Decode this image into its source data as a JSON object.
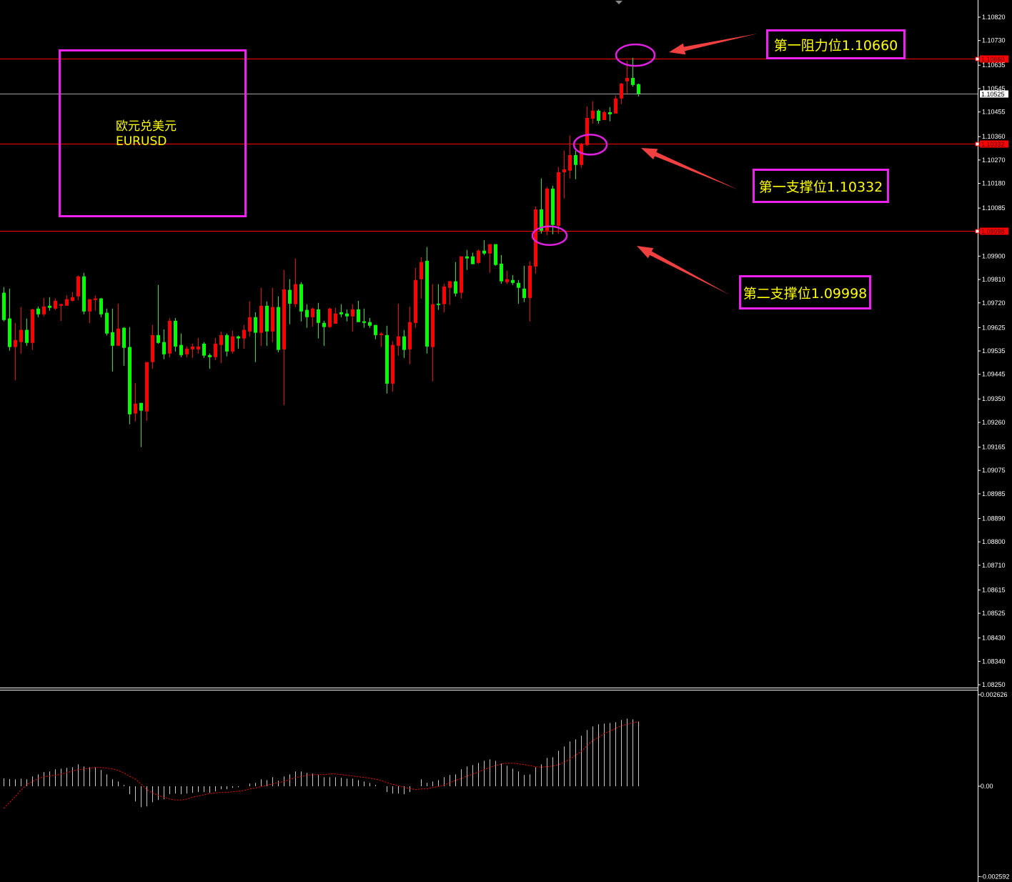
{
  "chart_data": {
    "type": "candlestick",
    "up_color": "#ff0000",
    "down_color": "#00ff00",
    "background": "#000000",
    "price_range": [
      1.0825,
      1.1082
    ],
    "y_ticks": [
      "1.10820",
      "1.10730",
      "1.10635",
      "1.10545",
      "1.10455",
      "1.10360",
      "1.10270",
      "1.10180",
      "1.10085",
      "1.09900",
      "1.09810",
      "1.09720",
      "1.09625",
      "1.09535",
      "1.09445",
      "1.09350",
      "1.09260",
      "1.09165",
      "1.09075",
      "1.08985",
      "1.08890",
      "1.08800",
      "1.08710",
      "1.08615",
      "1.08525",
      "1.08430",
      "1.08340",
      "1.08250"
    ],
    "ohlc": [
      [
        1.09759,
        1.09781,
        1.09649,
        1.09654
      ],
      [
        1.0966,
        1.09775,
        1.09536,
        1.0955
      ],
      [
        1.0955,
        1.09643,
        1.09423,
        1.09577
      ],
      [
        1.09569,
        1.09704,
        1.09525,
        1.09616
      ],
      [
        1.09616,
        1.0966,
        1.09555,
        1.09566
      ],
      [
        1.09566,
        1.09698,
        1.09539,
        1.09695
      ],
      [
        1.09698,
        1.09706,
        1.09665,
        1.09676
      ],
      [
        1.09676,
        1.09739,
        1.09668,
        1.09706
      ],
      [
        1.09709,
        1.09742,
        1.0969,
        1.09701
      ],
      [
        1.09698,
        1.09737,
        1.09693,
        1.09728
      ],
      [
        1.09709,
        1.09717,
        1.09651,
        1.09715
      ],
      [
        1.09709,
        1.0975,
        1.09709,
        1.09734
      ],
      [
        1.09728,
        1.09761,
        1.09726,
        1.09742
      ],
      [
        1.09745,
        1.09825,
        1.09731,
        1.09822
      ],
      [
        1.09822,
        1.09836,
        1.09676,
        1.09687
      ],
      [
        1.09687,
        1.09734,
        1.09643,
        1.09734
      ],
      [
        1.09731,
        1.09748,
        1.0969,
        1.09737
      ],
      [
        1.09737,
        1.09739,
        1.09665,
        1.09676
      ],
      [
        1.09682,
        1.09698,
        1.09594,
        1.09602
      ],
      [
        1.09607,
        1.09698,
        1.09456,
        1.09555
      ],
      [
        1.09555,
        1.09717,
        1.09555,
        1.09621
      ],
      [
        1.09624,
        1.09627,
        1.09478,
        1.09547
      ],
      [
        1.0955,
        1.09627,
        1.09253,
        1.09291
      ],
      [
        1.09294,
        1.09412,
        1.09264,
        1.09332
      ],
      [
        1.09335,
        1.09335,
        1.09165,
        1.09305
      ],
      [
        1.09302,
        1.09492,
        1.09266,
        1.09492
      ],
      [
        1.09492,
        1.09635,
        1.09467,
        1.09596
      ],
      [
        1.09596,
        1.09789,
        1.09563,
        1.09566
      ],
      [
        1.09569,
        1.09618,
        1.09503,
        1.09522
      ],
      [
        1.09525,
        1.09662,
        1.09511,
        1.09651
      ],
      [
        1.09651,
        1.09662,
        1.09533,
        1.09552
      ],
      [
        1.09558,
        1.09602,
        1.09511,
        1.09519
      ],
      [
        1.09522,
        1.09552,
        1.09511,
        1.09544
      ],
      [
        1.09541,
        1.09563,
        1.09508,
        1.09552
      ],
      [
        1.09541,
        1.09585,
        1.09525,
        1.09552
      ],
      [
        1.09563,
        1.09569,
        1.09508,
        1.09517
      ],
      [
        1.09519,
        1.09525,
        1.09467,
        1.09511
      ],
      [
        1.09511,
        1.09585,
        1.095,
        1.09563
      ],
      [
        1.09558,
        1.0961,
        1.09489,
        1.09596
      ],
      [
        1.09596,
        1.09602,
        1.09514,
        1.09533
      ],
      [
        1.09533,
        1.09613,
        1.09525,
        1.09591
      ],
      [
        1.09591,
        1.09594,
        1.09544,
        1.09583
      ],
      [
        1.09583,
        1.09635,
        1.09544,
        1.09616
      ],
      [
        1.0961,
        1.09726,
        1.09591,
        1.09665
      ],
      [
        1.09665,
        1.09684,
        1.09492,
        1.09605
      ],
      [
        1.09605,
        1.09778,
        1.09555,
        1.09709
      ],
      [
        1.09709,
        1.09726,
        1.09555,
        1.0961
      ],
      [
        1.0961,
        1.09778,
        1.09569,
        1.09704
      ],
      [
        1.09704,
        1.09745,
        1.0953,
        1.09539
      ],
      [
        1.09541,
        1.09847,
        1.09327,
        1.09772
      ],
      [
        1.0977,
        1.09811,
        1.09638,
        1.09717
      ],
      [
        1.09715,
        1.09891,
        1.09704,
        1.09792
      ],
      [
        1.09792,
        1.098,
        1.09649,
        1.09687
      ],
      [
        1.09693,
        1.09715,
        1.09624,
        1.09665
      ],
      [
        1.09665,
        1.09701,
        1.09629,
        1.09698
      ],
      [
        1.09695,
        1.0972,
        1.09583,
        1.09643
      ],
      [
        1.09643,
        1.09651,
        1.09555,
        1.09627
      ],
      [
        1.09627,
        1.09701,
        1.09624,
        1.09698
      ],
      [
        1.0964,
        1.09701,
        1.0964,
        1.09679
      ],
      [
        1.09684,
        1.09715,
        1.09665,
        1.09676
      ],
      [
        1.09679,
        1.09695,
        1.09649,
        1.09668
      ],
      [
        1.09668,
        1.09715,
        1.0961,
        1.09695
      ],
      [
        1.09695,
        1.09728,
        1.09646,
        1.09646
      ],
      [
        1.09649,
        1.09698,
        1.09624,
        1.09643
      ],
      [
        1.09646,
        1.09662,
        1.09624,
        1.09632
      ],
      [
        1.09635,
        1.09635,
        1.0958,
        1.09596
      ],
      [
        1.09596,
        1.09607,
        1.0955,
        1.09602
      ],
      [
        1.09596,
        1.09632,
        1.09371,
        1.09409
      ],
      [
        1.09409,
        1.09572,
        1.09379,
        1.09558
      ],
      [
        1.09555,
        1.09717,
        1.09517,
        1.09591
      ],
      [
        1.09591,
        1.09616,
        1.09508,
        1.09539
      ],
      [
        1.09541,
        1.09706,
        1.09484,
        1.09646
      ],
      [
        1.09643,
        1.09855,
        1.09624,
        1.09808
      ],
      [
        1.09811,
        1.09896,
        1.09737,
        1.09877
      ],
      [
        1.09882,
        1.09935,
        1.09525,
        1.09552
      ],
      [
        1.0955,
        1.09792,
        1.09418,
        1.09715
      ],
      [
        1.09717,
        1.09792,
        1.09693,
        1.09712
      ],
      [
        1.09715,
        1.09794,
        1.09684,
        1.09783
      ],
      [
        1.09778,
        1.09805,
        1.09712,
        1.09803
      ],
      [
        1.09803,
        1.09877,
        1.09745,
        1.09756
      ],
      [
        1.09759,
        1.09899,
        1.09737,
        1.09899
      ],
      [
        1.09899,
        1.09924,
        1.09847,
        1.09891
      ],
      [
        1.09899,
        1.09913,
        1.09869,
        1.09869
      ],
      [
        1.09874,
        1.09926,
        1.09871,
        1.09921
      ],
      [
        1.09921,
        1.09962,
        1.09904,
        1.0991
      ],
      [
        1.0991,
        1.09946,
        1.09836,
        1.09946
      ],
      [
        1.09946,
        1.09946,
        1.09863,
        1.09866
      ],
      [
        1.09871,
        1.09904,
        1.09794,
        1.09803
      ],
      [
        1.098,
        1.09844,
        1.09792,
        1.09811
      ],
      [
        1.09808,
        1.09827,
        1.09789,
        1.09797
      ],
      [
        1.09797,
        1.09808,
        1.09717,
        1.09778
      ],
      [
        1.09775,
        1.09863,
        1.09723,
        1.09739
      ],
      [
        1.09739,
        1.0988,
        1.09649,
        1.09863
      ],
      [
        1.0986,
        1.10091,
        1.09833,
        1.1008
      ],
      [
        1.1008,
        1.10199,
        1.09987,
        1.09998
      ],
      [
        1.09998,
        1.10166,
        1.09981,
        1.1016
      ],
      [
        1.1016,
        1.10171,
        1.09984,
        1.1002
      ],
      [
        1.10017,
        1.10243,
        1.09987,
        1.10223
      ],
      [
        1.10223,
        1.10306,
        1.10122,
        1.10234
      ],
      [
        1.10229,
        1.10364,
        1.10199,
        1.10289
      ],
      [
        1.10289,
        1.10306,
        1.10196,
        1.10251
      ],
      [
        1.10251,
        1.10336,
        1.1024,
        1.10333
      ],
      [
        1.10328,
        1.10476,
        1.10325,
        1.10432
      ],
      [
        1.10429,
        1.10496,
        1.1041,
        1.1046
      ],
      [
        1.1046,
        1.10465,
        1.1041,
        1.10421
      ],
      [
        1.10424,
        1.1046,
        1.10424,
        1.10454
      ],
      [
        1.10454,
        1.10474,
        1.10419,
        1.10446
      ],
      [
        1.10449,
        1.10518,
        1.10449,
        1.10507
      ],
      [
        1.10507,
        1.10567,
        1.10485,
        1.10564
      ],
      [
        1.10573,
        1.10652,
        1.10526,
        1.10586
      ],
      [
        1.10586,
        1.10663,
        1.10553,
        1.10559
      ],
      [
        1.10562,
        1.10564,
        1.10515,
        1.10525
      ]
    ],
    "horizontal_lines": [
      {
        "price": 1.1066,
        "label": "1.10660",
        "color": "#ff0000"
      },
      {
        "price": 1.10332,
        "label": "1.10332",
        "color": "#ff0000"
      },
      {
        "price": 1.09998,
        "label": "1.09998",
        "color": "#ff0000"
      }
    ],
    "current_price": {
      "price": 1.10525,
      "label": "1.10525",
      "color": "#a0a0a0"
    },
    "circled_points": [
      1.1066,
      1.10332,
      1.09998
    ],
    "indicator": {
      "type": "histogram+signal",
      "y_range": [
        -0.002592,
        0.002626
      ],
      "y_ticks": [
        {
          "value": 0.002626,
          "label": "0.002626"
        },
        {
          "value": 0,
          "label": "0.00"
        },
        {
          "value": -0.002592,
          "label": "-0.002592"
        }
      ],
      "histogram_color": "#c8c8c8",
      "signal_color": "#ff0000",
      "histogram": [
        0.000226,
        0.000205,
        0.000199,
        0.000219,
        0.000199,
        0.000281,
        0.000342,
        0.000404,
        0.000424,
        0.000486,
        0.000506,
        0.000527,
        0.000547,
        0.000629,
        0.000568,
        0.000547,
        0.000547,
        0.000465,
        0.000342,
        0.000199,
        0.000137,
        3.5e-05,
        -0.000232,
        -0.000437,
        -0.000601,
        -0.00058,
        -0.000457,
        -0.000396,
        -0.000375,
        -0.000232,
        -0.000211,
        -0.000232,
        -0.000211,
        -0.000191,
        -0.00017,
        -0.00017,
        -0.000191,
        -0.00015,
        -8.8e-05,
        -8.8e-05,
        -4.7e-05,
        -2.7e-05,
        0,
        7.6e-05,
        9.6e-05,
        0.000199,
        0.000178,
        0.00026,
        0.000158,
        0.000281,
        0.000342,
        0.000424,
        0.000424,
        0.000383,
        0.000363,
        0.000322,
        0.00026,
        0.00026,
        0.00026,
        0.00024,
        0.000219,
        0.000219,
        0.000178,
        0.000137,
        9.6e-05,
        3.5e-05,
        0,
        -0.00017,
        -0.000211,
        -0.000211,
        -0.000232,
        -0.00017,
        0,
        0.000199,
        9.6e-05,
        0.000137,
        0.000178,
        0.00026,
        0.000322,
        0.000342,
        0.000486,
        0.000568,
        0.000609,
        0.00067,
        0.000732,
        0.000773,
        0.000732,
        0.00065,
        0.000588,
        0.000506,
        0.000424,
        0.000322,
        0.000342,
        0.000547,
        0.000629,
        0.000814,
        0.000834,
        0.001019,
        0.001142,
        0.001285,
        0.001347,
        0.001449,
        0.001613,
        0.001716,
        0.001777,
        0.001798,
        0.001818,
        0.001839,
        0.0019,
        0.001941,
        0.001921,
        0.001859
      ],
      "signal": [
        -0.000636,
        -0.000465,
        -0.000293,
        -0.000109,
        4.7e-05,
        0.000137,
        0.000219,
        0.000273,
        0.000293,
        0.000314,
        0.000349,
        0.00039,
        0.000437,
        0.000478,
        0.000498,
        0.000519,
        0.000539,
        0.000539,
        0.000519,
        0.000498,
        0.000451,
        0.000375,
        0.000287,
        0.000205,
        6.2e-05,
        -9.6e-05,
        -0.000191,
        -0.00026,
        -0.000322,
        -0.000369,
        -0.000396,
        -0.000396,
        -0.000369,
        -0.000314,
        -0.000281,
        -0.000246,
        -0.000211,
        -0.000191,
        -0.000178,
        -0.000178,
        -0.000158,
        -0.000144,
        -0.000123,
        -7.6e-05,
        -5.5e-05,
        -6e-06,
        2.7e-05,
        6.8e-05,
        0.000103,
        0.000137,
        0.000191,
        0.000252,
        0.000281,
        0.000314,
        0.000334,
        0.000334,
        0.000334,
        0.000355,
        0.000355,
        0.000334,
        0.000314,
        0.000293,
        0.000273,
        0.000252,
        0.000232,
        0.000205,
        0.000164,
        0.000103,
        5.5e-05,
        1.4e-05,
        -3.5e-05,
        -6.8e-05,
        -9.6e-05,
        -7.6e-05,
        -7.6e-05,
        -3.5e-05,
        -6e-06,
        3.5e-05,
        0.000103,
        0.00017,
        0.000219,
        0.000293,
        0.000349,
        0.00041,
        0.000478,
        0.000547,
        0.000595,
        0.000642,
        0.000662,
        0.000662,
        0.000642,
        0.000621,
        0.000588,
        0.00056,
        0.000547,
        0.00056,
        0.00058,
        0.000621,
        0.000683,
        0.000785,
        0.000888,
        0.001005,
        0.001169,
        0.001312,
        0.0014,
        0.001517,
        0.001585,
        0.001661,
        0.001736,
        0.001777,
        0.001818,
        0.001851
      ]
    }
  },
  "annotations": {
    "symbol_cn": "欧元兑美元",
    "symbol": "EURUSD",
    "resistance_1": "第一阻力位1.10660",
    "support_1": "第一支撑位1.10332",
    "support_2": "第二支撑位1.09998",
    "box_color": "#ee22ee",
    "text_color": "#ffff00",
    "arrow_color": "#f04040",
    "circle_color": "#e020e0"
  }
}
